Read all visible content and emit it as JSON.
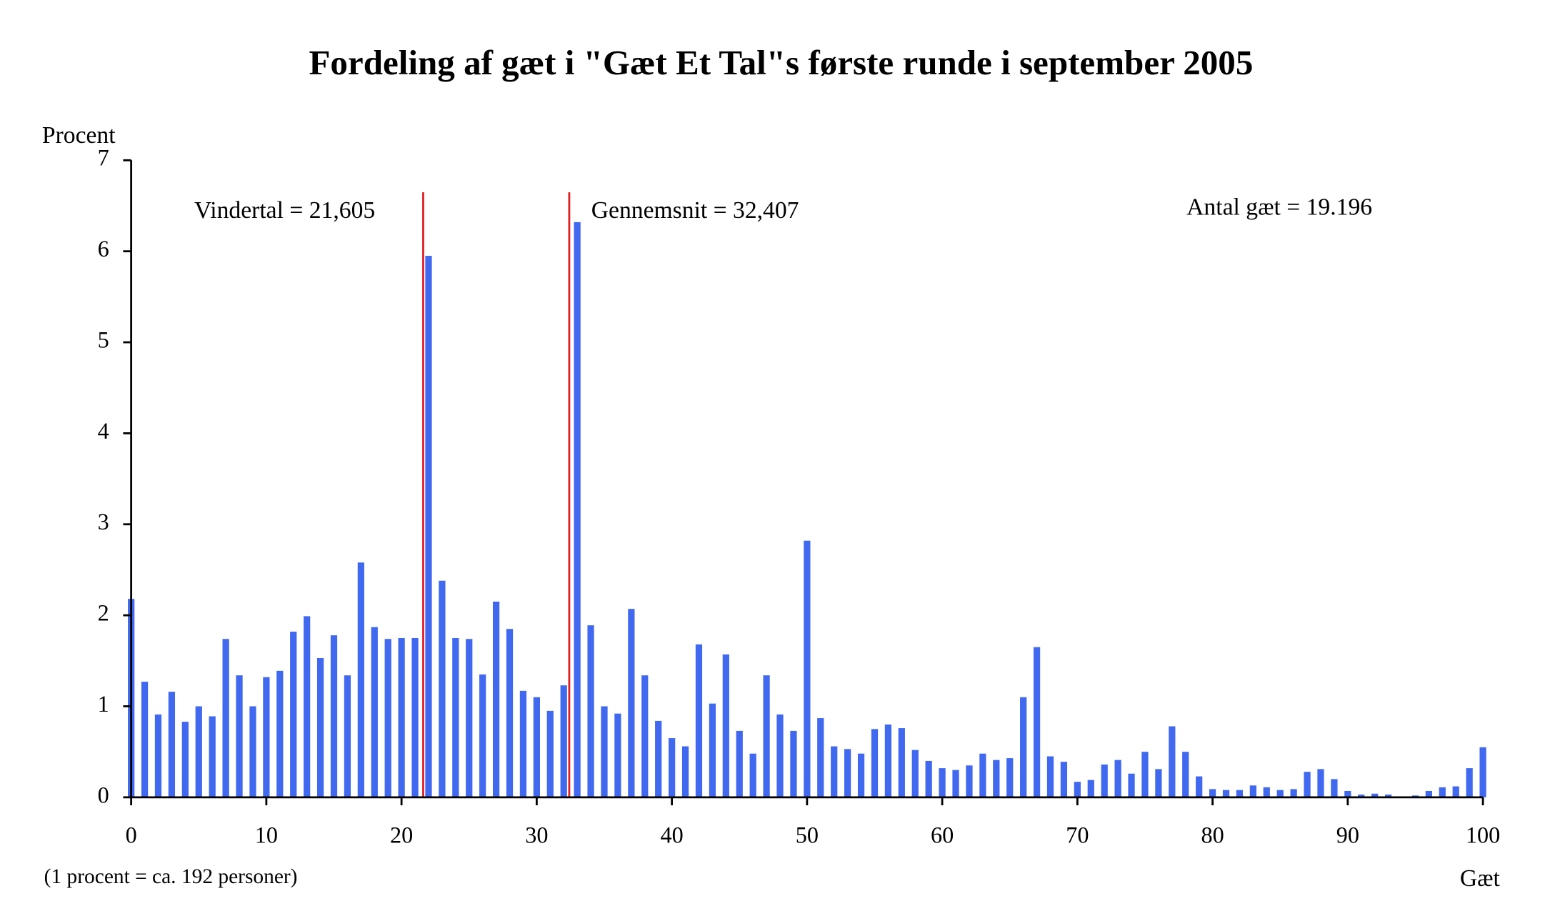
{
  "chart_data": {
    "type": "bar",
    "title": "Fordeling af gæt i \"Gæt Et Tal\"s første runde i september 2005",
    "ylabel": "Procent",
    "xlabel": "Gæt",
    "note": "(1 procent = ca. 192 personer)",
    "annotations": [
      "Antal gæt = 19.196"
    ],
    "reference_lines": [
      {
        "label": "Vindertal = 21,605",
        "value": 21.605,
        "color": "#e02020"
      },
      {
        "label": "Gennemsnit = 32,407",
        "value": 32.407,
        "color": "#e02020"
      }
    ],
    "color": "#4169f0",
    "x": [
      0,
      1,
      2,
      3,
      4,
      5,
      6,
      7,
      8,
      9,
      10,
      11,
      12,
      13,
      14,
      15,
      16,
      17,
      18,
      19,
      20,
      21,
      22,
      23,
      24,
      25,
      26,
      27,
      28,
      29,
      30,
      31,
      32,
      33,
      34,
      35,
      36,
      37,
      38,
      39,
      40,
      41,
      42,
      43,
      44,
      45,
      46,
      47,
      48,
      49,
      50,
      51,
      52,
      53,
      54,
      55,
      56,
      57,
      58,
      59,
      60,
      61,
      62,
      63,
      64,
      65,
      66,
      67,
      68,
      69,
      70,
      71,
      72,
      73,
      74,
      75,
      76,
      77,
      78,
      79,
      80,
      81,
      82,
      83,
      84,
      85,
      86,
      87,
      88,
      89,
      90,
      91,
      92,
      93,
      94,
      95,
      96,
      97,
      98,
      99,
      100
    ],
    "values": [
      2.18,
      1.27,
      0.91,
      1.16,
      0.83,
      1.0,
      0.89,
      1.74,
      1.34,
      1.0,
      1.32,
      1.39,
      1.82,
      1.99,
      1.53,
      1.78,
      1.34,
      2.58,
      1.87,
      1.74,
      1.75,
      1.75,
      5.95,
      2.38,
      1.75,
      1.74,
      1.35,
      2.15,
      1.85,
      1.17,
      1.1,
      0.95,
      1.23,
      6.32,
      1.89,
      1.0,
      0.92,
      2.07,
      1.34,
      0.84,
      0.65,
      0.56,
      1.68,
      1.03,
      1.57,
      0.73,
      0.48,
      1.34,
      0.91,
      0.73,
      2.82,
      0.87,
      0.56,
      0.53,
      0.48,
      0.75,
      0.8,
      0.76,
      0.52,
      0.4,
      0.32,
      0.3,
      0.35,
      0.48,
      0.41,
      0.43,
      1.1,
      1.65,
      0.45,
      0.39,
      0.17,
      0.19,
      0.36,
      0.41,
      0.26,
      0.5,
      0.31,
      0.78,
      0.5,
      0.23,
      0.09,
      0.08,
      0.08,
      0.13,
      0.11,
      0.08,
      0.09,
      0.28,
      0.31,
      0.2,
      0.07,
      0.03,
      0.04,
      0.03,
      0.01,
      0.02,
      0.07,
      0.11,
      0.12,
      0.32,
      0.55
    ],
    "xlim": [
      0,
      100
    ],
    "xticks": [
      0,
      10,
      20,
      30,
      40,
      50,
      60,
      70,
      80,
      90,
      100
    ],
    "ylim": [
      0,
      7
    ],
    "yticks": [
      0,
      1,
      2,
      3,
      4,
      5,
      6,
      7
    ]
  }
}
